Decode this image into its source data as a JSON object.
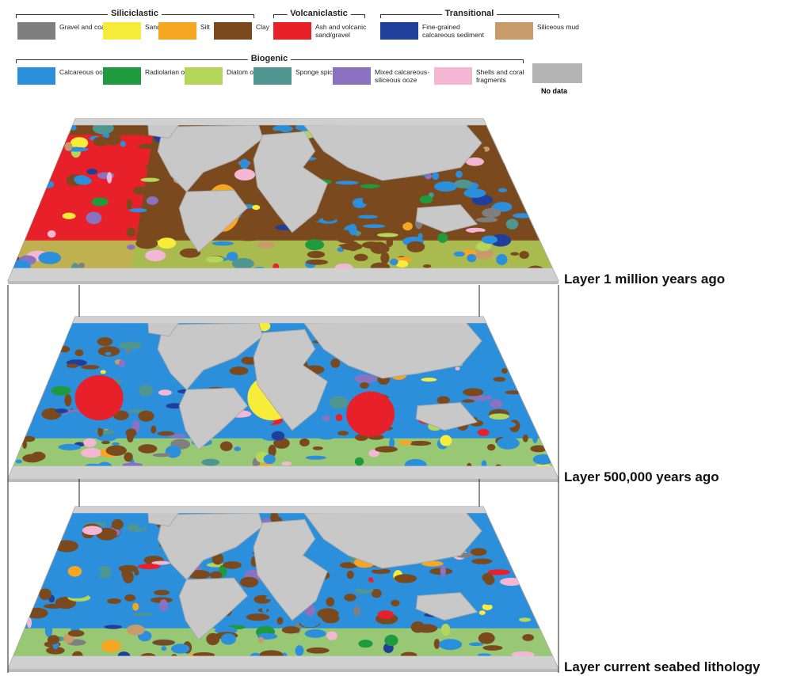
{
  "legend": {
    "groups": [
      {
        "title": "Siliciclastic",
        "items": [
          {
            "label": "Gravel and coarser",
            "color": "#7f7f7f"
          },
          {
            "label": "Sand",
            "color": "#f7ec3a"
          },
          {
            "label": "Silt",
            "color": "#f5a623"
          },
          {
            "label": "Clay",
            "color": "#7a4a1e"
          }
        ]
      },
      {
        "title": "Volcaniclastic",
        "items": [
          {
            "label": "Ash and volcanic sand/gravel",
            "color": "#e8202a"
          }
        ]
      },
      {
        "title": "Transitional",
        "items": [
          {
            "label": "Fine-grained calcareous sediment",
            "color": "#1f3f9a"
          },
          {
            "label": "Siliceous mud",
            "color": "#c79c6a"
          }
        ]
      },
      {
        "title": "Biogenic",
        "items": [
          {
            "label": "Calcareous ooze",
            "color": "#2b8fdc"
          },
          {
            "label": "Radiolarian ooze",
            "color": "#1f9a3e"
          },
          {
            "label": "Diatom ooze",
            "color": "#b5d65a"
          },
          {
            "label": "Sponge spicules",
            "color": "#4f9590"
          },
          {
            "label": "Mixed calcareous-siliceous ooze",
            "color": "#8a72c0"
          },
          {
            "label": "Shells and coral fragments",
            "color": "#f4b7d3"
          }
        ]
      }
    ],
    "no_data": {
      "label": "No data",
      "color": "#b4b4b4"
    }
  },
  "layers": [
    {
      "label": "Layer 1 million years ago"
    },
    {
      "label": "Layer 500,000 years ago"
    },
    {
      "label": "Layer current seabed lithology"
    }
  ]
}
